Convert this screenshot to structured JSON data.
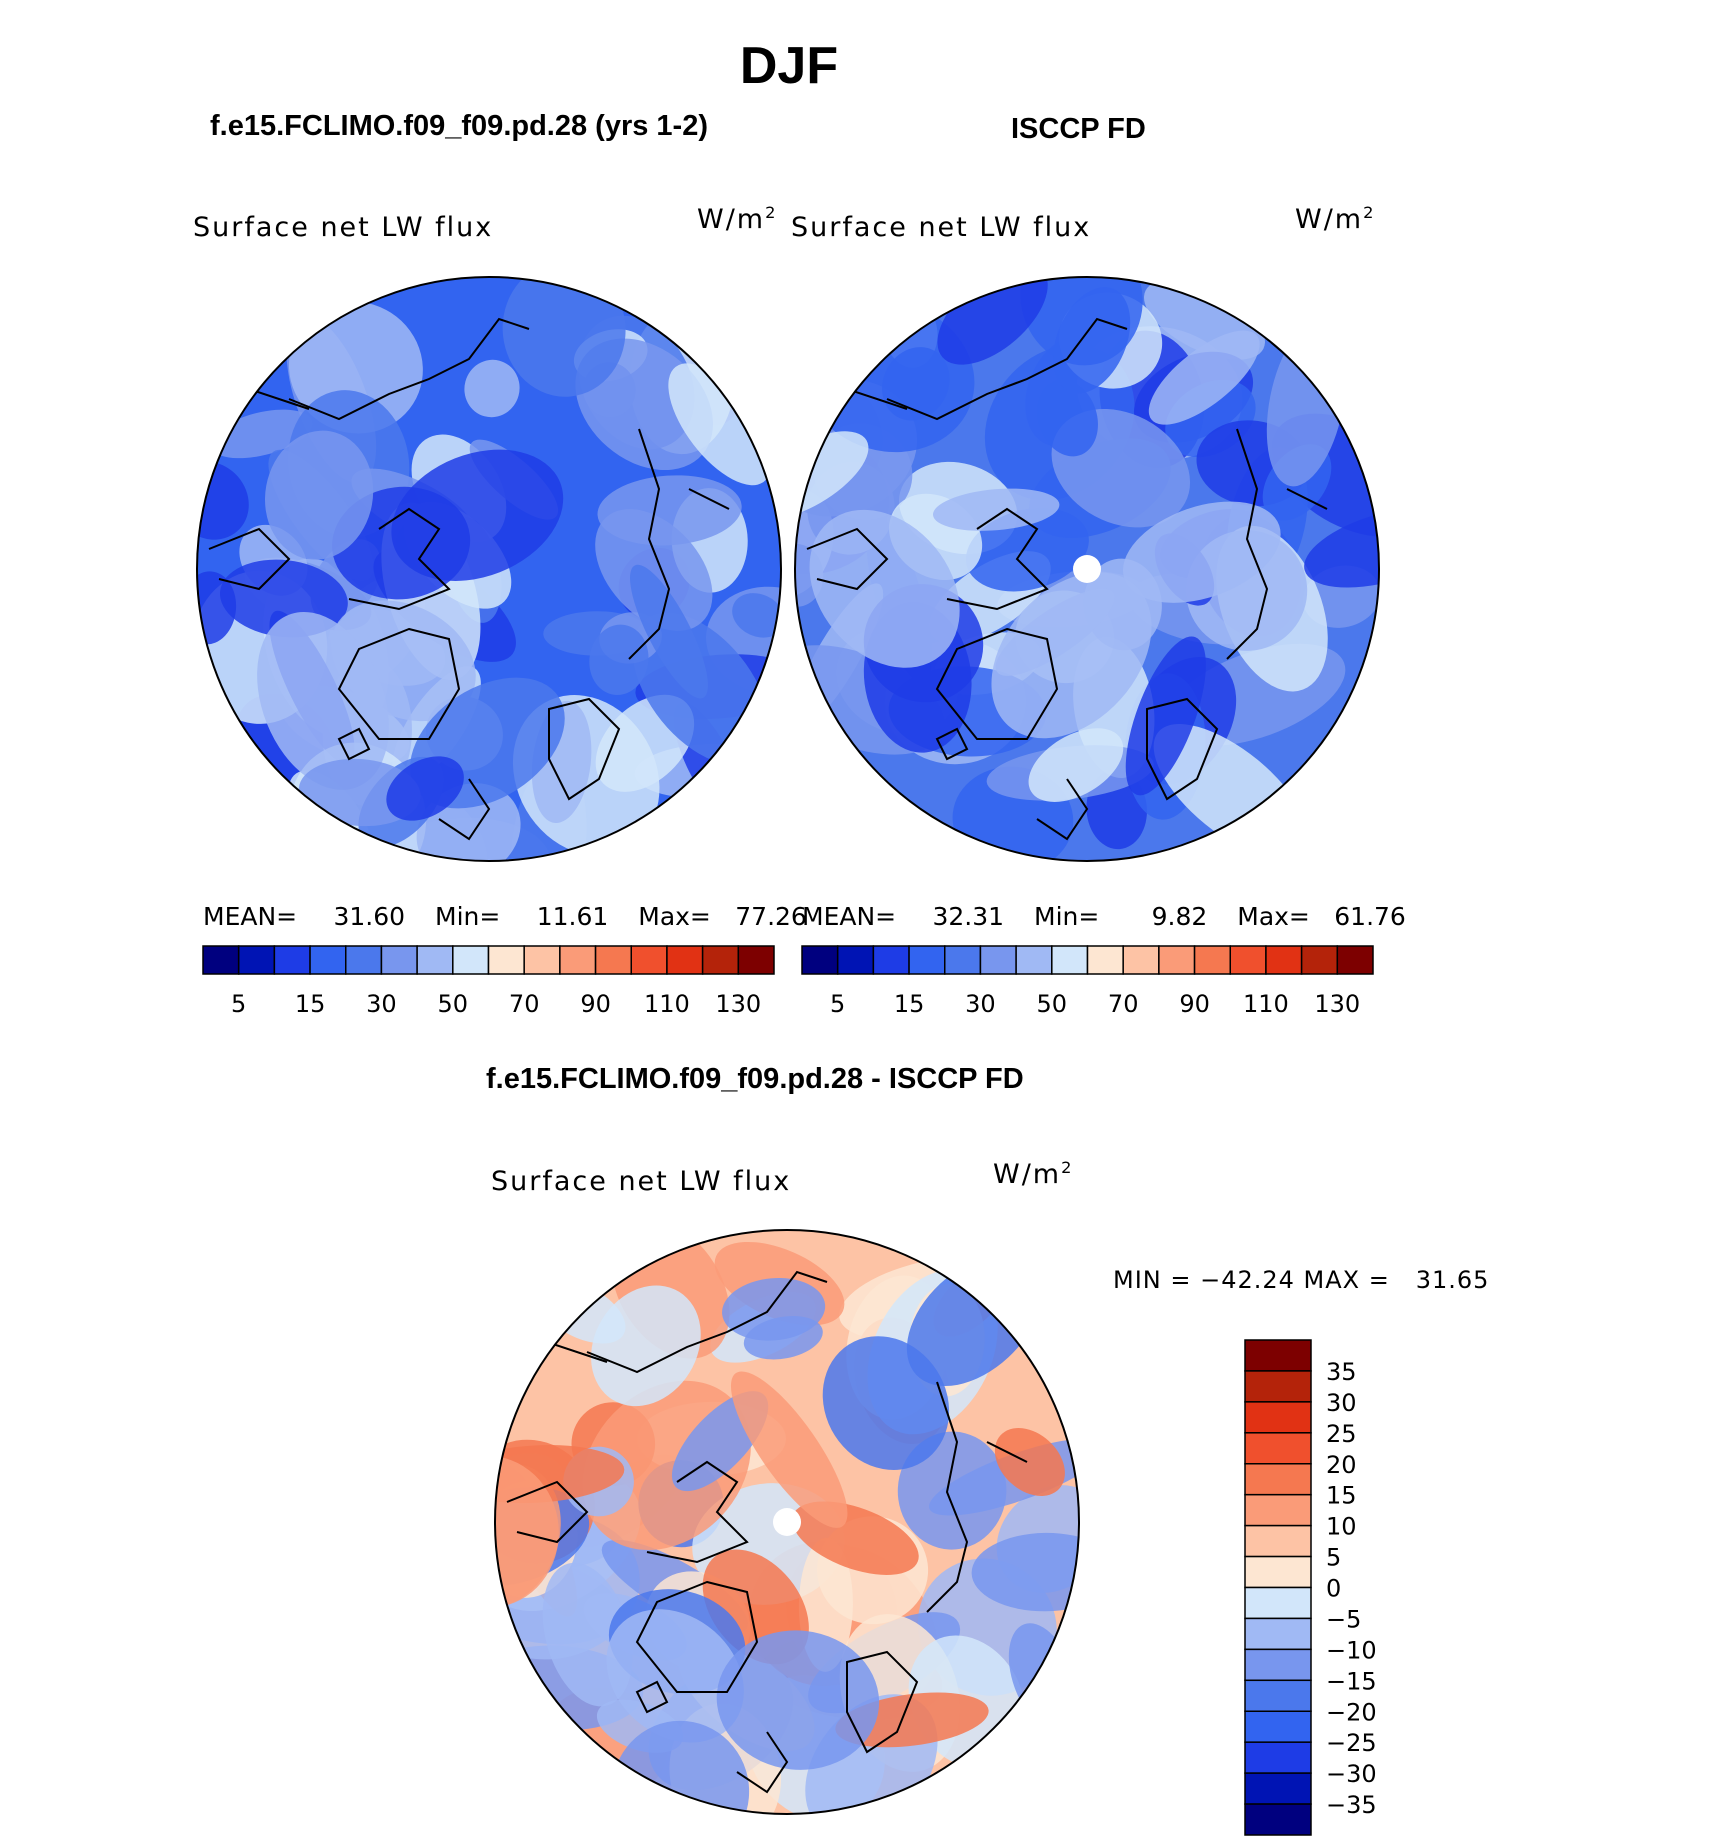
{
  "title": "DJF",
  "panels": [
    {
      "header": "f.e15.FCLIMO.f09_f09.pd.28 (yrs 1-2)",
      "variable": "Surface net LW flux",
      "units_base": "W/m",
      "units_exp": "2",
      "mean_label": "MEAN=",
      "mean": "31.60",
      "min_label": "Min=",
      "min": "11.61",
      "max_label": "Max=",
      "max": "77.26"
    },
    {
      "header": "ISCCP FD",
      "variable": "Surface net LW flux",
      "units_base": "W/m",
      "units_exp": "2",
      "mean_label": "MEAN=",
      "mean": "32.31",
      "min_label": "Min=",
      "min": "9.82",
      "max_label": "Max=",
      "max": "61.76"
    }
  ],
  "diff": {
    "header": "f.e15.FCLIMO.f09_f09.pd.28 - ISCCP FD",
    "variable": "Surface net LW flux",
    "units_base": "W/m",
    "units_exp": "2",
    "minmax": "MIN = −42.24 MAX =   31.65"
  },
  "abs_colorbar": {
    "colors": [
      "#00007f",
      "#0014b4",
      "#1e3ce6",
      "#3264f0",
      "#4b78ec",
      "#7896ee",
      "#a0b9f4",
      "#d2e6fa",
      "#fde6d2",
      "#fdc3a5",
      "#fa9b78",
      "#f57850",
      "#f0502d",
      "#e13214",
      "#b4230a",
      "#7d0000"
    ],
    "tick_labels": [
      "5",
      "15",
      "30",
      "50",
      "70",
      "90",
      "110",
      "130"
    ]
  },
  "diff_colorbar": {
    "colors": [
      "#7d0000",
      "#b4230a",
      "#e13214",
      "#f0502d",
      "#f57850",
      "#fa9b78",
      "#fdc3a5",
      "#fde6d2",
      "#d2e6fa",
      "#a0b9f4",
      "#7896ee",
      "#4b78ec",
      "#3264f0",
      "#1e3ce6",
      "#0014b4",
      "#00007f"
    ],
    "tick_labels": [
      "35",
      "30",
      "25",
      "20",
      "15",
      "10",
      "5",
      "0",
      "−5",
      "−10",
      "−15",
      "−20",
      "−25",
      "−30",
      "−35"
    ]
  },
  "map_palettes": {
    "panel_a": {
      "base": "#3264f0",
      "blobs": [
        "#1e3ce6",
        "#4b78ec",
        "#7896ee",
        "#a0b9f4",
        "#d2e6fa"
      ]
    },
    "panel_b": {
      "base": "#4b78ec",
      "blobs": [
        "#1e3ce6",
        "#3264f0",
        "#7896ee",
        "#a0b9f4",
        "#d2e6fa"
      ]
    },
    "panel_c": {
      "base": "#fdc3a5",
      "blobs": [
        "#fa9b78",
        "#f57850",
        "#a0b9f4",
        "#7896ee",
        "#4b78ec",
        "#fde6d2",
        "#d2e6fa"
      ]
    }
  }
}
